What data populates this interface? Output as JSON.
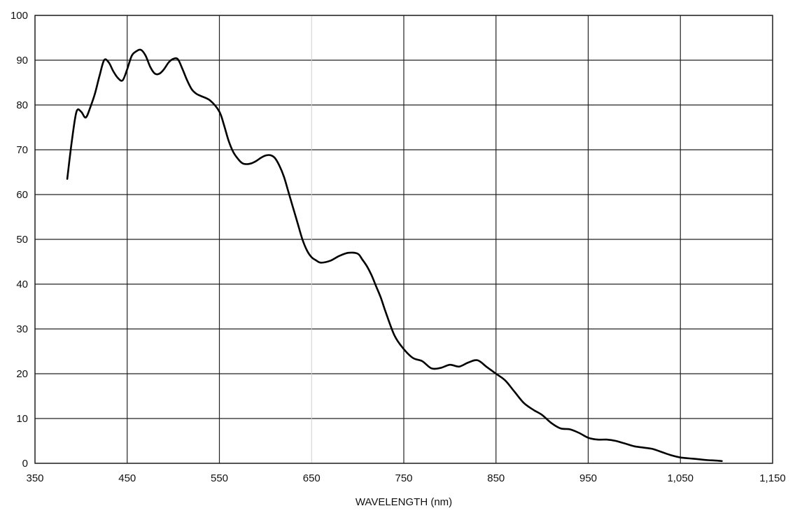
{
  "chart_data": {
    "type": "line",
    "title": "",
    "xlabel": "WAVELENGTH (nm)",
    "ylabel": "",
    "xlim": [
      350,
      1150
    ],
    "ylim": [
      0,
      100
    ],
    "grid": true,
    "x_ticks": [
      350,
      450,
      550,
      650,
      750,
      850,
      950,
      1050,
      1150
    ],
    "x_tick_labels": [
      "350",
      "450",
      "550",
      "650",
      "750",
      "850",
      "950",
      "1,050",
      "1,150"
    ],
    "y_ticks": [
      0,
      10,
      20,
      30,
      40,
      50,
      60,
      70,
      80,
      90,
      100
    ],
    "y_tick_labels": [
      "0",
      "10",
      "20",
      "30",
      "40",
      "50",
      "60",
      "70",
      "80",
      "90",
      "100"
    ],
    "series": [
      {
        "x": [
          385,
          390,
          395,
          400,
          405,
          410,
          415,
          420,
          425,
          430,
          435,
          440,
          445,
          450,
          455,
          460,
          465,
          470,
          475,
          480,
          485,
          490,
          495,
          500,
          505,
          510,
          515,
          520,
          525,
          530,
          540,
          550,
          555,
          560,
          565,
          570,
          575,
          580,
          585,
          590,
          595,
          600,
          605,
          610,
          615,
          620,
          625,
          630,
          635,
          640,
          645,
          650,
          655,
          660,
          670,
          680,
          690,
          700,
          705,
          710,
          715,
          720,
          725,
          730,
          740,
          750,
          760,
          770,
          780,
          790,
          800,
          810,
          820,
          830,
          840,
          850,
          860,
          870,
          880,
          890,
          900,
          910,
          920,
          930,
          940,
          950,
          960,
          970,
          980,
          990,
          1000,
          1010,
          1020,
          1030,
          1040,
          1050,
          1060,
          1070,
          1080,
          1090,
          1095
        ],
        "y": [
          63.5,
          72,
          78.5,
          78.5,
          77.2,
          79.5,
          82.5,
          86.5,
          90,
          89.5,
          87.5,
          86,
          85.5,
          88,
          91,
          92,
          92.3,
          91,
          88.5,
          87,
          87,
          88,
          89.5,
          90.3,
          90.2,
          88,
          85.5,
          83.5,
          82.5,
          82,
          81,
          78.5,
          75.5,
          72,
          69.5,
          68,
          67,
          66.8,
          67,
          67.5,
          68.2,
          68.7,
          68.8,
          68.2,
          66.5,
          64,
          60.5,
          57,
          53.5,
          50,
          47.5,
          46,
          45.3,
          44.8,
          45.2,
          46.3,
          47,
          46.8,
          45.5,
          44,
          42,
          39.5,
          37,
          34,
          28.5,
          25.5,
          23.5,
          22.8,
          21.2,
          21.3,
          22,
          21.6,
          22.5,
          23,
          21.5,
          20,
          18.5,
          16,
          13.5,
          12,
          10.8,
          9,
          7.8,
          7.6,
          6.8,
          5.7,
          5.3,
          5.3,
          5,
          4.4,
          3.8,
          3.5,
          3.2,
          2.5,
          1.8,
          1.3,
          1.1,
          0.9,
          0.7,
          0.6,
          0.5
        ]
      }
    ]
  }
}
